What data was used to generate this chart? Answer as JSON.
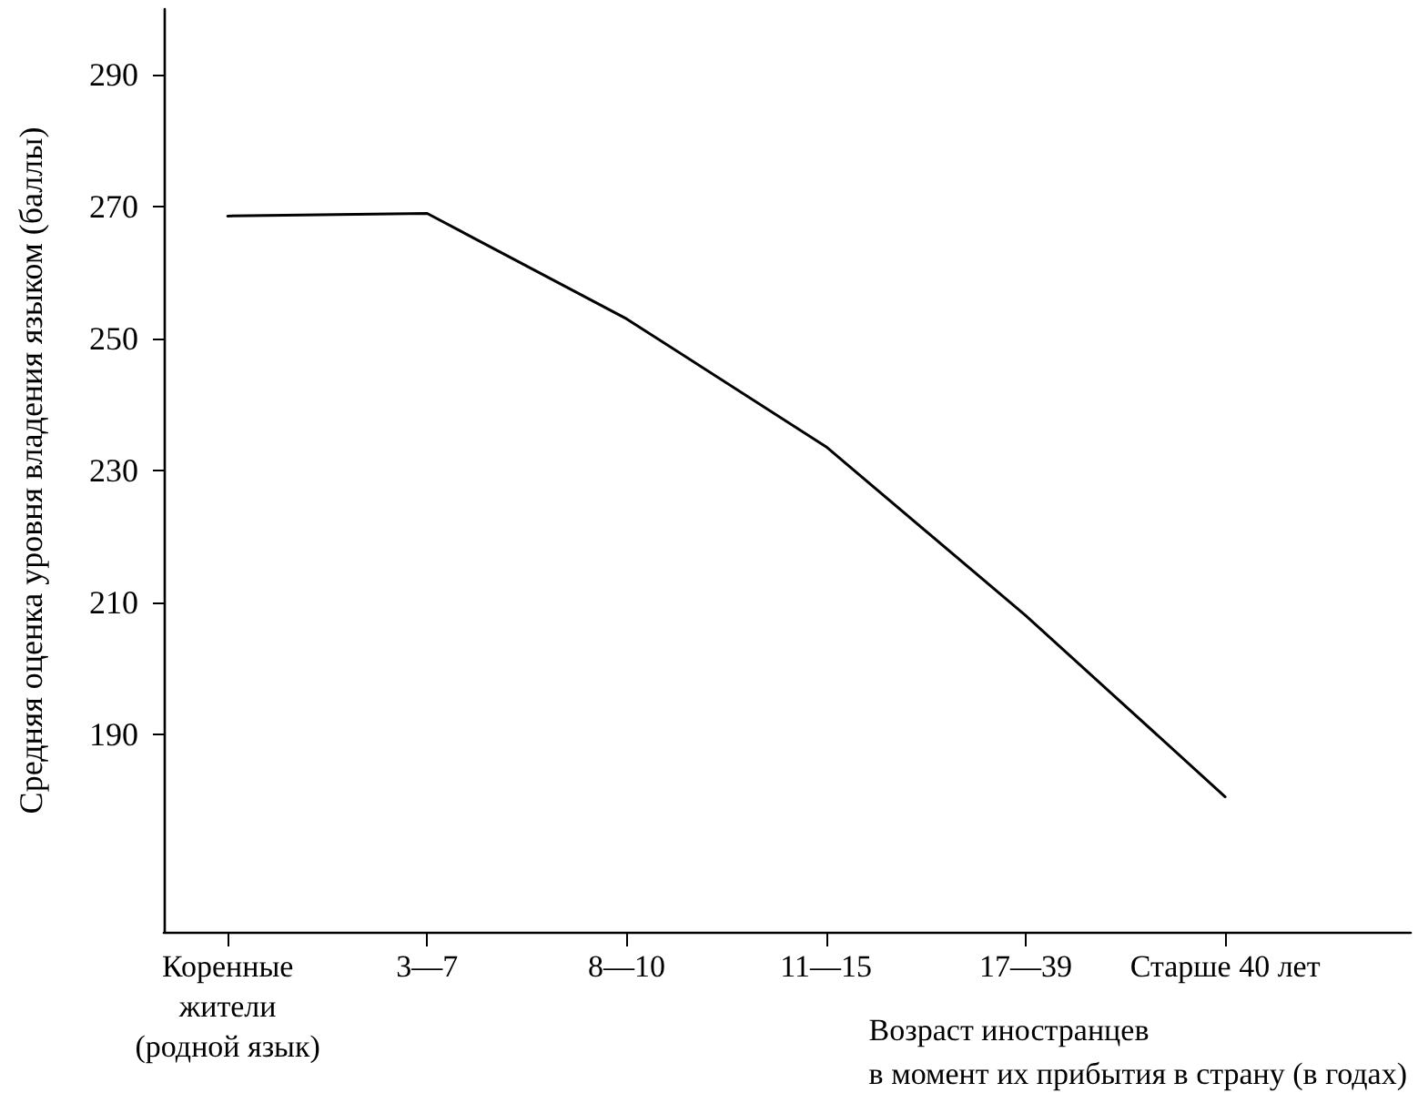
{
  "chart_data": {
    "type": "line",
    "xlabel": "Возраст иностранцев\nв момент их прибытия в страну (в годах)",
    "ylabel": "Средняя оценка уровня владения языком (баллы)",
    "categories": [
      "Коренные\nжители\n(родной язык)",
      "3—7",
      "8—10",
      "11—15",
      "17—39",
      "Старше 40 лет"
    ],
    "series": [
      {
        "color": "#000000",
        "values": [
          268.6,
          269,
          253,
          233.6,
          208,
          180.5
        ]
      }
    ],
    "ylim": [
      160,
      300
    ],
    "yticks": [
      190,
      210,
      230,
      250,
      270,
      290
    ],
    "grid": false,
    "marker": "none",
    "line_style": "solid"
  }
}
